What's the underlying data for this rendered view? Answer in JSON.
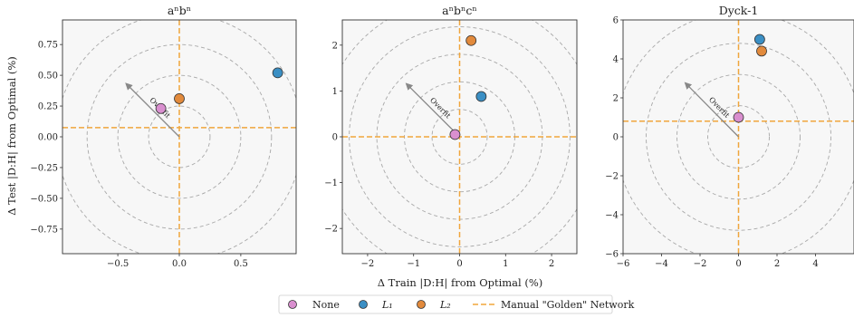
{
  "figure": {
    "ylabel": "Δ Test |D:H| from Optimal (%)",
    "xlabel": "Δ Train |D:H| from Optimal (%)",
    "legend": [
      {
        "label": "None",
        "kind": "marker",
        "color": "#d98fcf"
      },
      {
        "label": "L₁",
        "kind": "marker",
        "color": "#3b8fc4"
      },
      {
        "label": "L₂",
        "kind": "marker",
        "color": "#e28a3c"
      },
      {
        "label": "Manual \"Golden\" Network",
        "kind": "line",
        "color": "#f0a63c"
      }
    ]
  },
  "chart_data": [
    {
      "type": "scatter",
      "title": "aⁿbⁿ",
      "arrow_label": "Overfit",
      "xlim": [
        -0.95,
        0.95
      ],
      "ylim": [
        -0.95,
        0.95
      ],
      "xticks": [
        -0.5,
        0.0,
        0.5
      ],
      "xtick_labels": [
        "−0.5",
        "0.0",
        "0.5"
      ],
      "yticks": [
        -0.75,
        -0.5,
        -0.25,
        0.0,
        0.25,
        0.5,
        0.75
      ],
      "ytick_labels": [
        "−0.75",
        "−0.50",
        "−0.25",
        "0.00",
        "0.25",
        "0.50",
        "0.75"
      ],
      "ring_radii": [
        0.25,
        0.5,
        0.75,
        1.0
      ],
      "golden": {
        "x": 0.0,
        "y": 0.075
      },
      "arrow": {
        "from": [
          0.0,
          0.0
        ],
        "to": [
          -0.43,
          0.43
        ]
      },
      "series": [
        {
          "name": "None",
          "color": "#d98fcf",
          "points": [
            [
              -0.15,
              0.23
            ]
          ]
        },
        {
          "name": "L₁",
          "color": "#3b8fc4",
          "points": [
            [
              0.8,
              0.52
            ]
          ]
        },
        {
          "name": "L₂",
          "color": "#e28a3c",
          "points": [
            [
              0.0,
              0.31
            ]
          ]
        }
      ]
    },
    {
      "type": "scatter",
      "title": "aⁿbⁿcⁿ",
      "arrow_label": "Overfit",
      "xlim": [
        -2.55,
        2.55
      ],
      "ylim": [
        -2.55,
        2.55
      ],
      "xticks": [
        -2,
        -1,
        0,
        1,
        2
      ],
      "xtick_labels": [
        "−2",
        "−1",
        "0",
        "1",
        "2"
      ],
      "yticks": [
        -2,
        -1,
        0,
        1,
        2
      ],
      "ytick_labels": [
        "−2",
        "−1",
        "0",
        "1",
        "2"
      ],
      "ring_radii": [
        0.6,
        1.2,
        1.8,
        2.4,
        3.0
      ],
      "golden": {
        "x": 0.0,
        "y": 0.0
      },
      "arrow": {
        "from": [
          0.0,
          0.0
        ],
        "to": [
          -1.15,
          1.15
        ]
      },
      "series": [
        {
          "name": "None",
          "color": "#d98fcf",
          "points": [
            [
              -0.1,
              0.05
            ]
          ]
        },
        {
          "name": "L₁",
          "color": "#3b8fc4",
          "points": [
            [
              0.47,
              0.88
            ]
          ]
        },
        {
          "name": "L₂",
          "color": "#e28a3c",
          "points": [
            [
              0.25,
              2.1
            ]
          ]
        }
      ]
    },
    {
      "type": "scatter",
      "title": "Dyck-1",
      "arrow_label": "Overfit",
      "xlim": [
        -6,
        6
      ],
      "ylim": [
        -6,
        6
      ],
      "xticks": [
        -6,
        -4,
        -2,
        0,
        2,
        4
      ],
      "xtick_labels": [
        "−6",
        "−4",
        "−2",
        "0",
        "2",
        "4"
      ],
      "yticks": [
        -6,
        -4,
        -2,
        0,
        2,
        4,
        6
      ],
      "ytick_labels": [
        "−6",
        "−4",
        "−2",
        "0",
        "2",
        "4",
        "6"
      ],
      "ring_radii": [
        1.6,
        3.2,
        4.8,
        6.4
      ],
      "golden": {
        "x": 0.0,
        "y": 0.8
      },
      "arrow": {
        "from": [
          0.0,
          0.0
        ],
        "to": [
          -2.75,
          2.75
        ]
      },
      "series": [
        {
          "name": "None",
          "color": "#d98fcf",
          "points": [
            [
              0.0,
              1.0
            ]
          ]
        },
        {
          "name": "L₁",
          "color": "#3b8fc4",
          "points": [
            [
              1.1,
              5.0
            ]
          ]
        },
        {
          "name": "L₂",
          "color": "#e28a3c",
          "points": [
            [
              1.2,
              4.4
            ]
          ]
        }
      ]
    }
  ]
}
